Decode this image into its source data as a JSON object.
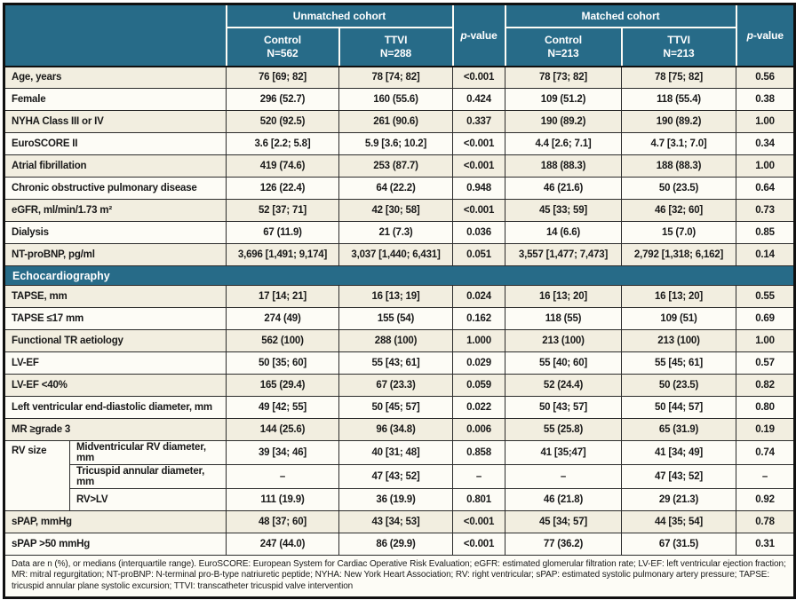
{
  "palette": {
    "header_teal": "#276b88",
    "row_shaded": "#f2eee0",
    "row_plain": "#fdfcf6",
    "grid_line": "#2b2b2b",
    "header_divider": "#fdfcf6"
  },
  "header": {
    "unmatched": "Unmatched cohort",
    "matched": "Matched cohort",
    "p_italic": "p",
    "p_rest": "-value",
    "cols": [
      {
        "line1": "Control",
        "line2": "N=562"
      },
      {
        "line1": "TTVI",
        "line2": "N=288"
      },
      {
        "line1": "Control",
        "line2": "N=213"
      },
      {
        "line1": "TTVI",
        "line2": "N=213"
      }
    ]
  },
  "rows": [
    {
      "label": "Age, years",
      "shade": true,
      "values": [
        "76 [69; 82]",
        "78 [74; 82]",
        "<0.001",
        "78 [73; 82]",
        "78 [75; 82]",
        "0.56"
      ]
    },
    {
      "label": "Female",
      "shade": false,
      "values": [
        "296 (52.7)",
        "160 (55.6)",
        "0.424",
        "109 (51.2)",
        "118 (55.4)",
        "0.38"
      ]
    },
    {
      "label": "NYHA Class III or IV",
      "shade": true,
      "values": [
        "520 (92.5)",
        "261 (90.6)",
        "0.337",
        "190 (89.2)",
        "190 (89.2)",
        "1.00"
      ]
    },
    {
      "label": "EuroSCORE II",
      "shade": false,
      "values": [
        "3.6 [2.2; 5.8]",
        "5.9 [3.6; 10.2]",
        "<0.001",
        "4.4 [2.6; 7.1]",
        "4.7 [3.1; 7.0]",
        "0.34"
      ]
    },
    {
      "label": "Atrial fibrillation",
      "shade": true,
      "values": [
        "419 (74.6)",
        "253 (87.7)",
        "<0.001",
        "188 (88.3)",
        "188 (88.3)",
        "1.00"
      ]
    },
    {
      "label": "Chronic obstructive pulmonary disease",
      "shade": false,
      "values": [
        "126 (22.4)",
        "64 (22.2)",
        "0.948",
        "46 (21.6)",
        "50 (23.5)",
        "0.64"
      ]
    },
    {
      "label": "eGFR, ml/min/1.73 m²",
      "shade": true,
      "values": [
        "52 [37; 71]",
        "42 [30; 58]",
        "<0.001",
        "45 [33; 59]",
        "46 [32; 60]",
        "0.73"
      ]
    },
    {
      "label": "Dialysis",
      "shade": false,
      "values": [
        "67 (11.9)",
        "21 (7.3)",
        "0.036",
        "14 (6.6)",
        "15 (7.0)",
        "0.85"
      ]
    },
    {
      "label": "NT-proBNP, pg/ml",
      "shade": true,
      "values": [
        "3,696 [1,491; 9,174]",
        "3,037 [1,440; 6,431]",
        "0.051",
        "3,557 [1,477; 7,473]",
        "2,792 [1,318; 6,162]",
        "0.14"
      ]
    },
    {
      "type": "section",
      "label": "Echocardiography"
    },
    {
      "label": "TAPSE, mm",
      "shade": true,
      "values": [
        "17 [14; 21]",
        "16 [13; 19]",
        "0.024",
        "16 [13; 20]",
        "16 [13; 20]",
        "0.55"
      ]
    },
    {
      "label": "TAPSE ≤17 mm",
      "shade": false,
      "values": [
        "274 (49)",
        "155 (54)",
        "0.162",
        "118 (55)",
        "109 (51)",
        "0.69"
      ]
    },
    {
      "label": "Functional TR aetiology",
      "shade": true,
      "values": [
        "562 (100)",
        "288 (100)",
        "1.000",
        "213 (100)",
        "213 (100)",
        "1.00"
      ]
    },
    {
      "label": "LV-EF",
      "shade": false,
      "values": [
        "50 [35; 60]",
        "55 [43; 61]",
        "0.029",
        "55 [40; 60]",
        "55 [45; 61]",
        "0.57"
      ]
    },
    {
      "label": "LV-EF <40%",
      "shade": true,
      "values": [
        "165 (29.4)",
        "67 (23.3)",
        "0.059",
        "52 (24.4)",
        "50 (23.5)",
        "0.82"
      ]
    },
    {
      "label": "Left ventricular end-diastolic diameter, mm",
      "shade": false,
      "values": [
        "49 [42; 55]",
        "50 [45; 57]",
        "0.022",
        "50 [43; 57]",
        "50 [44; 57]",
        "0.80"
      ]
    },
    {
      "label": "MR ≥grade 3",
      "shade": true,
      "values": [
        "144 (25.6)",
        "96 (34.8)",
        "0.006",
        "55 (25.8)",
        "65 (31.9)",
        "0.19"
      ]
    },
    {
      "group": "RV size",
      "group_span": 3,
      "sublabel": "Midventricular RV diameter, mm",
      "shade": false,
      "values": [
        "39 [34; 46]",
        "40 [31; 48]",
        "0.858",
        "41 [35;47]",
        "41 [34; 49]",
        "0.74"
      ]
    },
    {
      "sublabel": "Tricuspid annular diameter, mm",
      "shade": false,
      "values": [
        "–",
        "47 [43; 52]",
        "–",
        "–",
        "47 [43; 52]",
        "–"
      ]
    },
    {
      "sublabel": "RV>LV",
      "shade": false,
      "values": [
        "111 (19.9)",
        "36 (19.9)",
        "0.801",
        "46 (21.8)",
        "29 (21.3)",
        "0.92"
      ]
    },
    {
      "label": "sPAP, mmHg",
      "shade": true,
      "values": [
        "48 [37; 60]",
        "43 [34; 53]",
        "<0.001",
        "45 [34; 57]",
        "44 [35; 54]",
        "0.78"
      ]
    },
    {
      "label": "sPAP >50 mmHg",
      "shade": false,
      "values": [
        "247 (44.0)",
        "86 (29.9)",
        "<0.001",
        "77 (36.2)",
        "67 (31.5)",
        "0.31"
      ]
    }
  ],
  "footnote": "Data are n (%), or medians (interquartile range). EuroSCORE: European System for Cardiac Operative Risk Evaluation; eGFR: estimated glomerular filtration rate; LV-EF: left ventricular ejection fraction; MR: mitral regurgitation; NT-proBNP: N-terminal pro-B-type natriuretic peptide; NYHA: New York Heart Association; RV: right ventricular; sPAP: estimated systolic pulmonary artery pressure; TAPSE: tricuspid annular plane systolic excursion; TTVI: transcatheter tricuspid valve intervention"
}
